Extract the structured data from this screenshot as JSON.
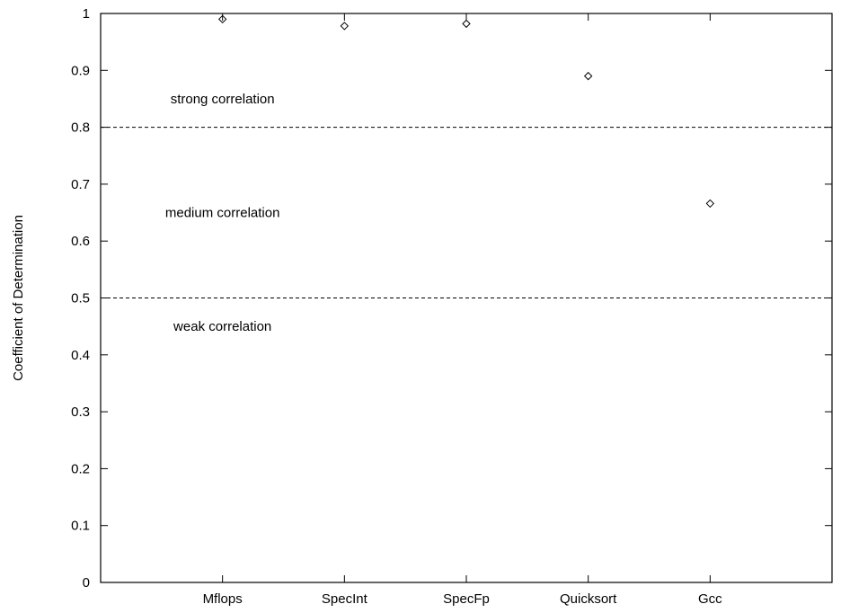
{
  "chart_data": {
    "type": "scatter",
    "title": "",
    "xlabel": "",
    "ylabel": "Coefficient of Determination",
    "ylim": [
      0,
      1
    ],
    "yticks": [
      "0",
      "0.1",
      "0.2",
      "0.3",
      "0.4",
      "0.5",
      "0.6",
      "0.7",
      "0.8",
      "0.9",
      "1"
    ],
    "categories": [
      "Mflops",
      "SpecInt",
      "SpecFp",
      "Quicksort",
      "Gcc"
    ],
    "values": [
      0.99,
      0.978,
      0.982,
      0.89,
      0.666
    ],
    "grid": false,
    "marker": "diamond",
    "thresholds": [
      {
        "value": 0.8,
        "style": "dashed"
      },
      {
        "value": 0.5,
        "style": "dashed"
      }
    ],
    "annotations": [
      {
        "text": "strong correlation",
        "y": 0.85
      },
      {
        "text": "medium correlation",
        "y": 0.65
      },
      {
        "text": "weak correlation",
        "y": 0.45
      }
    ]
  }
}
